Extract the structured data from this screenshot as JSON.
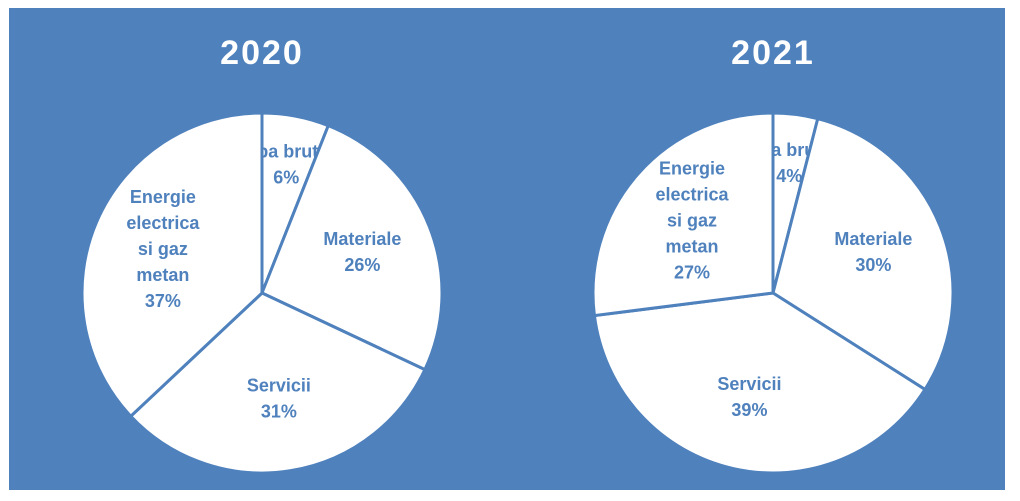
{
  "chart_data": [
    {
      "type": "pie",
      "title": "2020",
      "categories": [
        "Apa bruta",
        "Materiale",
        "Servicii",
        "Energie electrica si gaz metan"
      ],
      "values": [
        6,
        26,
        31,
        37
      ],
      "value_labels": [
        "6%",
        "26%",
        "31%",
        "37%"
      ],
      "color": "#ffffff"
    },
    {
      "type": "pie",
      "title": "2021",
      "categories": [
        "Apa bruta",
        "Materiale",
        "Servicii",
        "Energie electrica si gaz metan"
      ],
      "values": [
        4,
        30,
        39,
        27
      ],
      "value_labels": [
        "4%",
        "30%",
        "39%",
        "27%"
      ],
      "color": "#ffffff"
    }
  ]
}
